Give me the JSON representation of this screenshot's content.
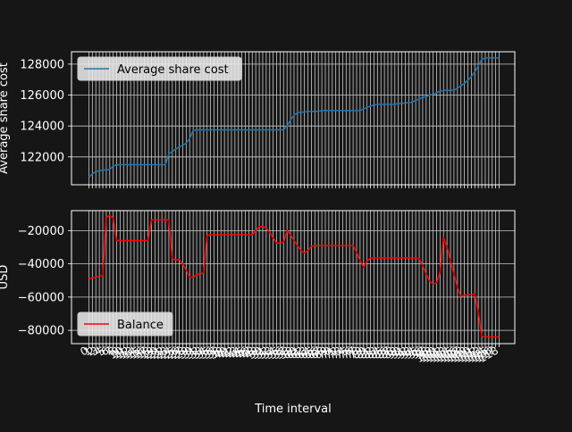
{
  "figure": {
    "background": "#161616",
    "text_color": "#ffffff",
    "grid_color": "#c8c8c8",
    "xlabel": "Time interval"
  },
  "chart_data": [
    {
      "type": "line",
      "title": "",
      "xlabel": "",
      "ylabel": "Average share cost",
      "ylim": [
        120200,
        128800
      ],
      "yticks": [
        122000,
        124000,
        126000,
        128000
      ],
      "ytick_labels": [
        "122000",
        "124000",
        "126000",
        "128000"
      ],
      "grid": true,
      "legend_position": "upper-left",
      "x": [
        0,
        1,
        2,
        3,
        4,
        5,
        6,
        7,
        8,
        9,
        10,
        11,
        12,
        13,
        14,
        15,
        16,
        17,
        18,
        19,
        20,
        21,
        22,
        23,
        24,
        25,
        26,
        27,
        28,
        29,
        30,
        31,
        32,
        33,
        34,
        35,
        36,
        37,
        38,
        39,
        40,
        41,
        42,
        43,
        44,
        45,
        46,
        47,
        48,
        49,
        50,
        51,
        52,
        53,
        54,
        55,
        56,
        57,
        58,
        59,
        60,
        61,
        62,
        63,
        64,
        65,
        66,
        67,
        68,
        69,
        70,
        71,
        72,
        73,
        74,
        75,
        76,
        77,
        78,
        79,
        80,
        81,
        82,
        83,
        84,
        85,
        86,
        87,
        88,
        89,
        90,
        91,
        92,
        93,
        94,
        95,
        96,
        97,
        98,
        99,
        100,
        101,
        102,
        103,
        104,
        105,
        106,
        107,
        108,
        109,
        110,
        111,
        112,
        113,
        114,
        115,
        116,
        117,
        118
      ],
      "series": [
        {
          "name": "Average share cost",
          "color": "#1f77b4",
          "values": [
            120700,
            120900,
            121050,
            121100,
            121150,
            121150,
            121200,
            121400,
            121500,
            121500,
            121500,
            121500,
            121500,
            121500,
            121500,
            121500,
            121500,
            121500,
            121500,
            121500,
            121500,
            121500,
            121500,
            122200,
            122350,
            122500,
            122650,
            122750,
            122900,
            123200,
            123700,
            123750,
            123750,
            123750,
            123750,
            123750,
            123750,
            123750,
            123750,
            123750,
            123750,
            123750,
            123750,
            123750,
            123750,
            123750,
            123750,
            123750,
            123750,
            123750,
            123750,
            123750,
            123750,
            123750,
            123750,
            123750,
            123750,
            124000,
            124400,
            124700,
            124850,
            124900,
            124900,
            124950,
            124950,
            124950,
            124950,
            125000,
            125000,
            125000,
            125000,
            125000,
            125000,
            125000,
            125000,
            125000,
            125000,
            125000,
            125000,
            125100,
            125200,
            125300,
            125350,
            125400,
            125400,
            125400,
            125400,
            125400,
            125400,
            125450,
            125450,
            125500,
            125500,
            125550,
            125650,
            125750,
            125850,
            125900,
            126000,
            126050,
            126150,
            126250,
            126300,
            126300,
            126300,
            126300,
            126450,
            126600,
            126750,
            126950,
            127200,
            127500,
            127900,
            128300,
            128400,
            128400,
            128400,
            128400,
            128400
          ]
        }
      ]
    },
    {
      "type": "line",
      "title": "",
      "xlabel": "Time interval",
      "ylabel": "USD",
      "ylim": [
        -88000,
        -8000
      ],
      "yticks": [
        -80000,
        -60000,
        -40000,
        -20000
      ],
      "ytick_labels": [
        "−80000",
        "−60000",
        "−40000",
        "−20000"
      ],
      "grid": true,
      "legend_position": "lower-left",
      "x": [
        0,
        1,
        2,
        3,
        4,
        5,
        6,
        7,
        8,
        9,
        10,
        11,
        12,
        13,
        14,
        15,
        16,
        17,
        18,
        19,
        20,
        21,
        22,
        23,
        24,
        25,
        26,
        27,
        28,
        29,
        30,
        31,
        32,
        33,
        34,
        35,
        36,
        37,
        38,
        39,
        40,
        41,
        42,
        43,
        44,
        45,
        46,
        47,
        48,
        49,
        50,
        51,
        52,
        53,
        54,
        55,
        56,
        57,
        58,
        59,
        60,
        61,
        62,
        63,
        64,
        65,
        66,
        67,
        68,
        69,
        70,
        71,
        72,
        73,
        74,
        75,
        76,
        77,
        78,
        79,
        80,
        81,
        82,
        83,
        84,
        85,
        86,
        87,
        88,
        89,
        90,
        91,
        92,
        93,
        94,
        95,
        96,
        97,
        98,
        99,
        100,
        101,
        102,
        103,
        104,
        105,
        106,
        107,
        108,
        109,
        110,
        111,
        112,
        113,
        114,
        115,
        116,
        117,
        118
      ],
      "series": [
        {
          "name": "Balance",
          "color": "#ff0000",
          "values": [
            -49000,
            -48500,
            -48000,
            -47500,
            -47000,
            -12000,
            -11000,
            -12500,
            -26000,
            -26000,
            -26000,
            -26000,
            -26000,
            -26000,
            -26000,
            -26000,
            -26000,
            -26000,
            -13500,
            -13500,
            -13500,
            -13500,
            -13500,
            -13500,
            -37000,
            -37500,
            -37500,
            -40000,
            -44000,
            -48000,
            -48000,
            -46500,
            -46000,
            -45500,
            -23000,
            -22500,
            -22500,
            -22500,
            -22500,
            -22500,
            -22500,
            -22500,
            -22500,
            -22500,
            -22500,
            -22500,
            -22500,
            -22500,
            -20000,
            -17500,
            -17500,
            -18500,
            -21000,
            -24500,
            -27500,
            -27500,
            -27000,
            -20000,
            -22500,
            -26000,
            -29000,
            -32000,
            -33500,
            -32000,
            -29500,
            -29000,
            -29000,
            -29000,
            -29000,
            -29000,
            -29000,
            -29000,
            -29000,
            -29000,
            -29000,
            -29000,
            -29000,
            -33000,
            -38000,
            -42000,
            -38500,
            -36500,
            -36500,
            -36500,
            -36500,
            -36500,
            -36500,
            -36500,
            -36500,
            -36500,
            -36500,
            -36500,
            -36500,
            -36500,
            -36500,
            -37000,
            -41000,
            -46000,
            -50500,
            -52000,
            -51500,
            -45000,
            -24000,
            -30000,
            -38000,
            -46000,
            -54000,
            -59500,
            -59000,
            -58500,
            -58500,
            -58000,
            -69000,
            -83500,
            -84000,
            -84000,
            -84000,
            -84000,
            -84000
          ]
        }
      ]
    }
  ]
}
